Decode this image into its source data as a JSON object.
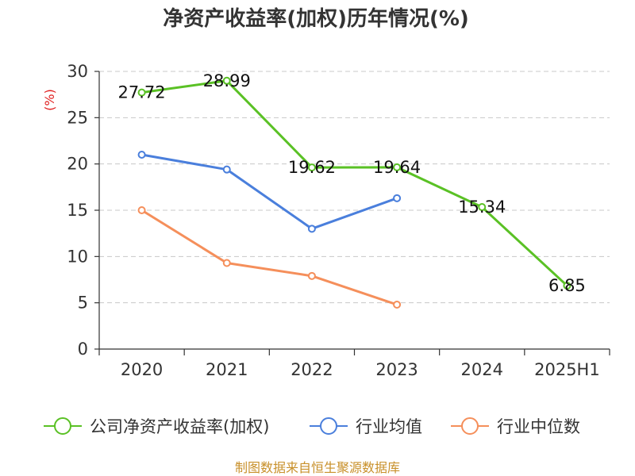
{
  "title": "净资产收益率(加权)历年情况(%)",
  "footer": "制图数据来自恒生聚源数据库",
  "chart_data": {
    "type": "line",
    "title": "净资产收益率(加权)历年情况(%)",
    "ylabel": "(%)",
    "xlabel": "",
    "categories": [
      "2020",
      "2021",
      "2022",
      "2023",
      "2024",
      "2025H1"
    ],
    "ylim": [
      0,
      30
    ],
    "yticks": [
      0,
      5,
      10,
      15,
      20,
      25,
      30
    ],
    "grid": true,
    "legend_position": "bottom",
    "series": [
      {
        "name": "公司净资产收益率(加权)",
        "color": "#5ac125",
        "values": [
          27.72,
          28.99,
          19.62,
          19.64,
          15.34,
          6.85
        ],
        "labels": [
          "27.72",
          "28.99",
          "19.62",
          "19.64",
          "15.34",
          "6.85"
        ]
      },
      {
        "name": "行业均值",
        "color": "#4a7fdc",
        "values": [
          21.0,
          19.4,
          13.0,
          16.3,
          null,
          null
        ]
      },
      {
        "name": "行业中位数",
        "color": "#f58f5b",
        "values": [
          15.0,
          9.3,
          7.9,
          4.8,
          null,
          null
        ]
      }
    ]
  }
}
